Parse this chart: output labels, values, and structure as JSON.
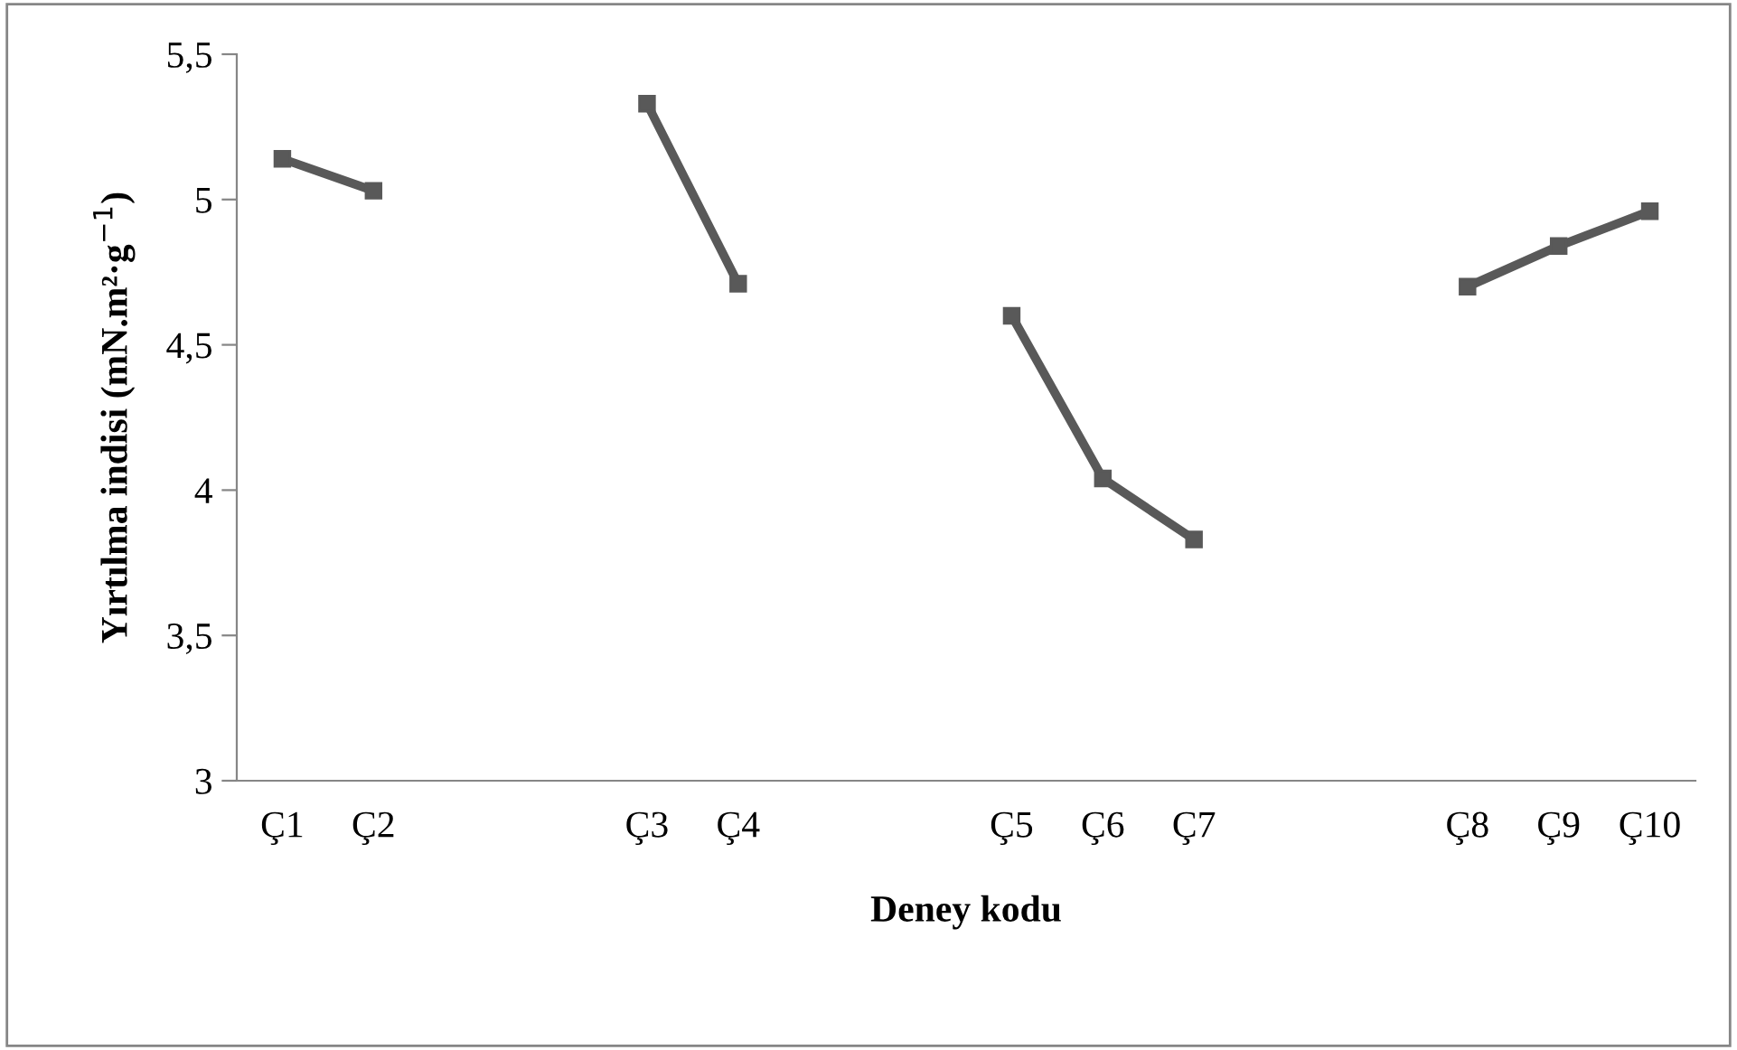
{
  "chart_data": {
    "type": "line",
    "xlabel": "Deney kodu",
    "ylabel": "Yırtılma indisi (mN.m²·g$^{−1}$)",
    "categories": [
      "Ç1",
      "Ç2",
      null,
      null,
      "Ç3",
      "Ç4",
      null,
      null,
      "Ç5",
      "Ç6",
      "Ç7",
      null,
      null,
      "Ç8",
      "Ç9",
      "Ç10"
    ],
    "series": [
      {
        "color": "#595959",
        "values": [
          5.14,
          5.03,
          null,
          null,
          5.33,
          4.71,
          null,
          null,
          4.6,
          4.04,
          3.83,
          null,
          null,
          4.7,
          4.84,
          4.96
        ]
      }
    ],
    "ylim": [
      3,
      5.5
    ],
    "yticks": [
      3,
      {
        "value": 3.5,
        "label": "3,5"
      },
      4,
      {
        "value": 4.5,
        "label": "4,5"
      },
      5,
      {
        "value": 5.5,
        "label": "5,5"
      }
    ],
    "marker": "square",
    "line_style": "solid",
    "grid": false
  }
}
